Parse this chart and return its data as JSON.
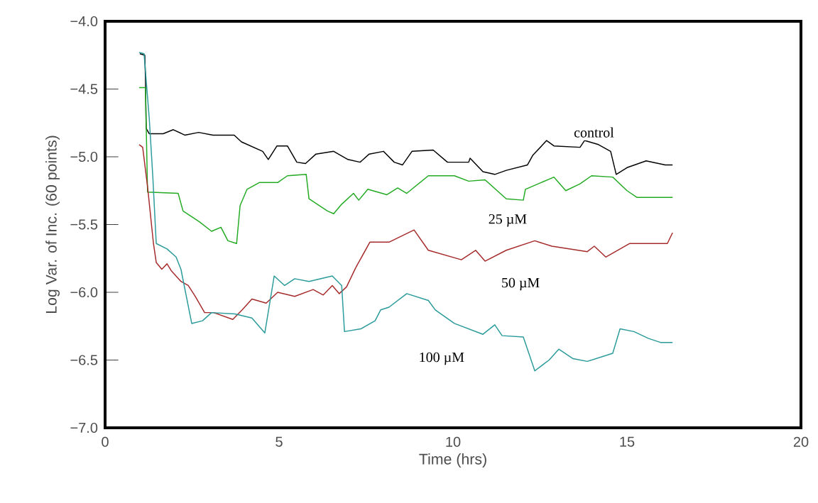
{
  "chart_data": {
    "type": "line",
    "xlabel": "Time (hrs)",
    "ylabel": "Log Var. of Inc. (60 points)",
    "xlim": [
      0,
      20
    ],
    "xticks": [
      0,
      5,
      10,
      15,
      20
    ],
    "ylim": [
      -7,
      -4
    ],
    "yticks": [
      {
        "value": -7,
        "label": "−7.0"
      },
      {
        "value": -6.5,
        "label": "−6.5"
      },
      {
        "value": -6,
        "label": "−6.0"
      },
      {
        "value": -5.5,
        "label": "−5.5"
      },
      {
        "value": -5,
        "label": "−5.0"
      },
      {
        "value": -4.5,
        "label": "−4.5"
      },
      {
        "value": -4,
        "label": "−4.0"
      }
    ],
    "grid": false,
    "legend": false,
    "line_style": "solid",
    "marker": "none",
    "series": [
      {
        "name": "control",
        "color": "#000000",
        "x": [
          1.0,
          1.14,
          1.16,
          1.18,
          1.27,
          1.67,
          1.96,
          2.29,
          2.69,
          3.1,
          3.71,
          3.92,
          4.53,
          4.69,
          4.94,
          5.24,
          5.51,
          5.76,
          6.06,
          6.57,
          6.98,
          7.33,
          7.59,
          8.0,
          8.31,
          8.55,
          8.82,
          9.43,
          9.84,
          10.45,
          10.49,
          10.86,
          11.2,
          11.53,
          12.14,
          12.29,
          12.69,
          12.9,
          13.65,
          13.78,
          14.18,
          14.53,
          14.69,
          15.0,
          15.55,
          16.1,
          16.31
        ],
        "values": [
          -4.24,
          -4.25,
          -4.42,
          -4.79,
          -4.83,
          -4.83,
          -4.8,
          -4.84,
          -4.82,
          -4.84,
          -4.84,
          -4.89,
          -4.96,
          -5.02,
          -4.92,
          -4.92,
          -5.04,
          -5.05,
          -4.98,
          -4.96,
          -5.02,
          -5.04,
          -4.98,
          -4.96,
          -5.04,
          -5.06,
          -4.96,
          -4.95,
          -5.04,
          -5.04,
          -5.01,
          -5.11,
          -5.13,
          -5.1,
          -5.06,
          -4.99,
          -4.88,
          -4.92,
          -4.93,
          -4.88,
          -4.91,
          -4.96,
          -5.13,
          -5.08,
          -5.03,
          -5.06,
          -5.06
        ]
      },
      {
        "name": "25 µM",
        "color": "#22aa22",
        "x": [
          0.98,
          1.16,
          1.22,
          2.1,
          2.24,
          2.71,
          3.06,
          3.33,
          3.53,
          3.78,
          3.88,
          4.08,
          4.43,
          4.96,
          5.24,
          5.78,
          5.86,
          6.39,
          6.57,
          6.8,
          7.14,
          7.29,
          7.55,
          8.1,
          8.41,
          8.67,
          9.29,
          10.04,
          10.45,
          10.92,
          11.53,
          12.02,
          12.08,
          12.9,
          13.24,
          13.65,
          13.98,
          14.59,
          15.0,
          15.29,
          16.31
        ],
        "values": [
          -4.49,
          -4.49,
          -5.26,
          -5.27,
          -5.4,
          -5.48,
          -5.55,
          -5.52,
          -5.62,
          -5.64,
          -5.36,
          -5.24,
          -5.19,
          -5.19,
          -5.14,
          -5.13,
          -5.31,
          -5.4,
          -5.42,
          -5.35,
          -5.27,
          -5.32,
          -5.24,
          -5.28,
          -5.23,
          -5.27,
          -5.14,
          -5.14,
          -5.18,
          -5.17,
          -5.31,
          -5.32,
          -5.24,
          -5.15,
          -5.25,
          -5.2,
          -5.14,
          -5.15,
          -5.25,
          -5.3,
          -5.3
        ]
      },
      {
        "name": "50 µM",
        "color": "#a52a2a",
        "x": [
          0.98,
          1.08,
          1.22,
          1.39,
          1.47,
          1.63,
          1.78,
          1.9,
          2.18,
          2.39,
          2.59,
          2.86,
          3.12,
          3.67,
          3.94,
          4.22,
          4.63,
          4.96,
          5.45,
          5.98,
          6.27,
          6.53,
          6.73,
          6.94,
          7.2,
          7.61,
          8.16,
          8.88,
          9.29,
          10.24,
          10.65,
          10.92,
          11.53,
          12.35,
          12.84,
          13.86,
          14.06,
          14.39,
          15.08,
          16.16,
          16.31
        ],
        "values": [
          -4.91,
          -4.93,
          -5.22,
          -5.64,
          -5.78,
          -5.83,
          -5.79,
          -5.84,
          -5.92,
          -5.95,
          -6.03,
          -6.15,
          -6.15,
          -6.2,
          -6.13,
          -6.05,
          -6.08,
          -6.0,
          -6.03,
          -5.98,
          -6.02,
          -5.95,
          -6.01,
          -5.96,
          -5.82,
          -5.63,
          -5.63,
          -5.54,
          -5.69,
          -5.76,
          -5.69,
          -5.77,
          -5.69,
          -5.62,
          -5.66,
          -5.7,
          -5.66,
          -5.74,
          -5.64,
          -5.64,
          -5.56
        ]
      },
      {
        "name": "100 µM",
        "color": "#2a9a9a",
        "x": [
          0.98,
          1.12,
          1.27,
          1.37,
          1.47,
          1.78,
          2.04,
          2.18,
          2.49,
          2.8,
          3.06,
          3.73,
          4.22,
          4.59,
          4.86,
          5.16,
          5.45,
          5.86,
          6.53,
          6.8,
          6.88,
          7.35,
          7.76,
          7.92,
          8.16,
          8.67,
          9.29,
          9.49,
          10.04,
          10.86,
          11.2,
          11.41,
          12.02,
          12.35,
          12.76,
          13.04,
          13.45,
          13.86,
          14.59,
          14.8,
          15.2,
          15.61,
          15.96,
          16.31
        ],
        "values": [
          -4.23,
          -4.24,
          -4.72,
          -5.14,
          -5.64,
          -5.68,
          -5.74,
          -5.83,
          -6.23,
          -6.21,
          -6.15,
          -6.16,
          -6.19,
          -6.3,
          -5.88,
          -5.95,
          -5.9,
          -5.92,
          -5.88,
          -5.95,
          -6.29,
          -6.27,
          -6.21,
          -6.13,
          -6.11,
          -6.01,
          -6.06,
          -6.13,
          -6.23,
          -6.31,
          -6.24,
          -6.32,
          -6.33,
          -6.58,
          -6.5,
          -6.42,
          -6.49,
          -6.51,
          -6.45,
          -6.27,
          -6.29,
          -6.34,
          -6.37,
          -6.37
        ]
      }
    ]
  }
}
